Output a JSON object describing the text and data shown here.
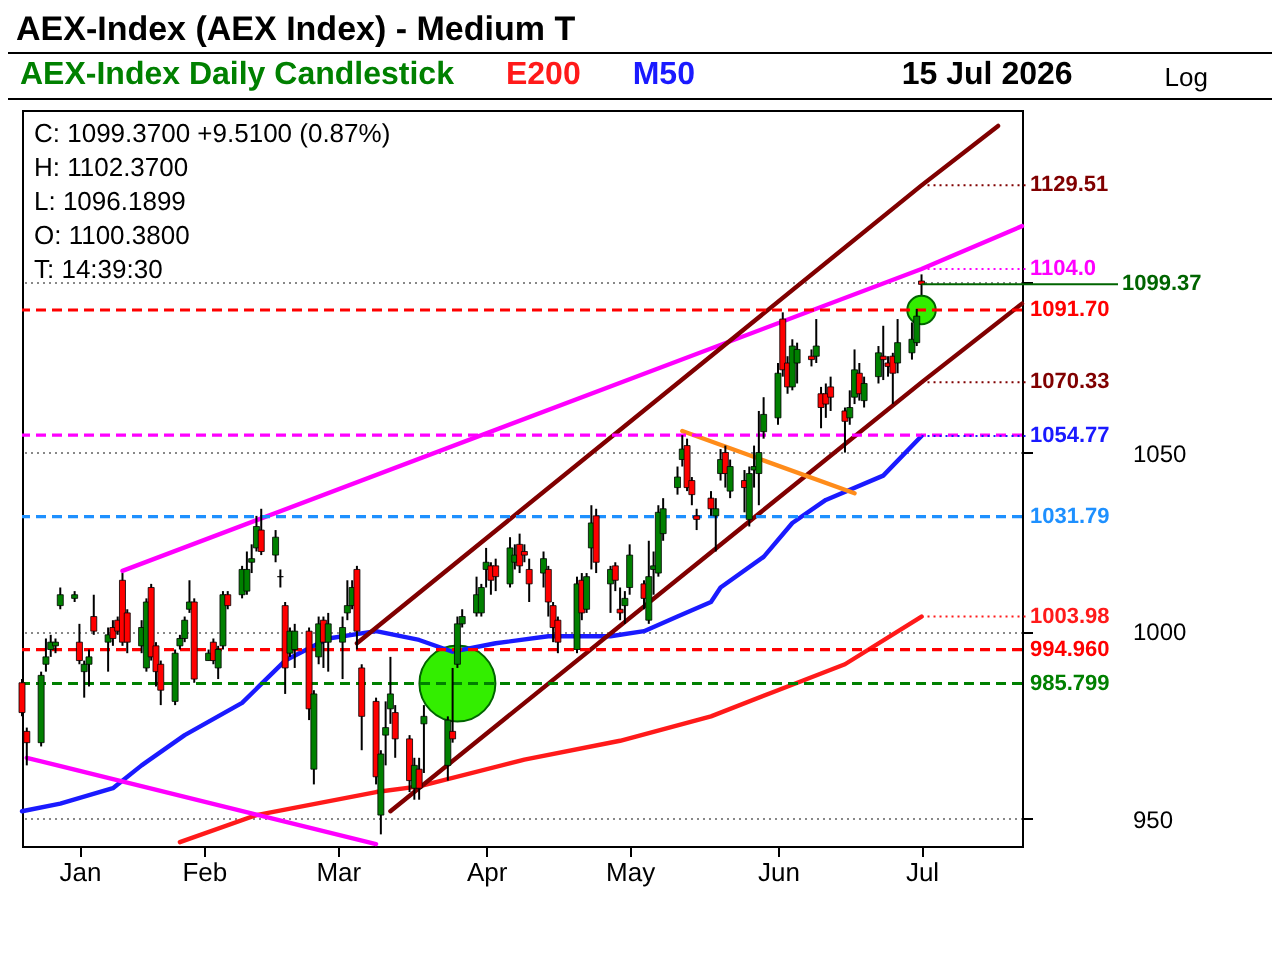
{
  "chart_data": {
    "type": "candlestick",
    "title": "AEX-Index (AEX Index) - Medium T",
    "subtitle": "AEX-Index Daily Candlestick",
    "annotations": [
      "15 Jul 2026",
      "Log",
      "C: 1099.3700  +9.5100 (0.87%)",
      "H: 1102.3700",
      "L: 1096.1899",
      "O: 1100.3800",
      "T: 14:39:30",
      {
        "text": "1099.37",
        "x": "2026-07-15",
        "y": 1099.37
      }
    ],
    "x": [
      "2026-01-08",
      "2026-01-09",
      "2026-01-12",
      "2026-01-13",
      "2026-01-14",
      "2026-01-15",
      "2026-01-16",
      "2026-01-19",
      "2026-01-20",
      "2026-01-21",
      "2026-01-22",
      "2026-01-23",
      "2026-01-26",
      "2026-01-27",
      "2026-01-28",
      "2026-01-29",
      "2026-01-30",
      "2026-02-02",
      "2026-02-03",
      "2026-02-04",
      "2026-02-05",
      "2026-02-06",
      "2026-02-09",
      "2026-02-10",
      "2026-02-11",
      "2026-02-12",
      "2026-02-13",
      "2026-02-16",
      "2026-02-17",
      "2026-02-18",
      "2026-02-19",
      "2026-02-20",
      "2026-02-23",
      "2026-02-24",
      "2026-02-25",
      "2026-02-26",
      "2026-02-27",
      "2026-03-02",
      "2026-03-03",
      "2026-03-04",
      "2026-03-05",
      "2026-03-06",
      "2026-03-09",
      "2026-03-10",
      "2026-03-11",
      "2026-03-12",
      "2026-03-13",
      "2026-03-16",
      "2026-03-17",
      "2026-03-18",
      "2026-03-19",
      "2026-03-20",
      "2026-03-23",
      "2026-03-24",
      "2026-03-25",
      "2026-03-26",
      "2026-03-27",
      "2026-03-30",
      "2026-03-31",
      "2026-04-01",
      "2026-04-02",
      "2026-04-07",
      "2026-04-08",
      "2026-04-09",
      "2026-04-10",
      "2026-04-13",
      "2026-04-14",
      "2026-04-15",
      "2026-04-16",
      "2026-04-17",
      "2026-04-20",
      "2026-04-21",
      "2026-04-22",
      "2026-04-23",
      "2026-04-24",
      "2026-04-27",
      "2026-04-28",
      "2026-04-29",
      "2026-04-30",
      "2026-05-04",
      "2026-05-05",
      "2026-05-06",
      "2026-05-07",
      "2026-05-08",
      "2026-05-11",
      "2026-05-12",
      "2026-05-13",
      "2026-05-14",
      "2026-05-15",
      "2026-05-18",
      "2026-05-19",
      "2026-05-20",
      "2026-05-21",
      "2026-05-22",
      "2026-05-25",
      "2026-05-26",
      "2026-05-27",
      "2026-05-28",
      "2026-05-29",
      "2026-06-01",
      "2026-06-02",
      "2026-06-03",
      "2026-06-04",
      "2026-06-05",
      "2026-06-08",
      "2026-06-09",
      "2026-06-10",
      "2026-06-11",
      "2026-06-12",
      "2026-06-15",
      "2026-06-16",
      "2026-06-17",
      "2026-06-18",
      "2026-06-19",
      "2026-06-22",
      "2026-06-23",
      "2026-06-24",
      "2026-06-25",
      "2026-06-26",
      "2026-06-29",
      "2026-06-30",
      "2026-07-01",
      "2026-07-02",
      "2026-07-03",
      "2026-07-06",
      "2026-07-07",
      "2026-07-08",
      "2026-07-09",
      "2026-07-10",
      "2026-07-13",
      "2026-07-14",
      "2026-07-15"
    ],
    "ohlc": [
      [
        986,
        987,
        977,
        978
      ],
      [
        973,
        974,
        964,
        970
      ],
      [
        970,
        989,
        969,
        988
      ],
      [
        991,
        998,
        989,
        993
      ],
      [
        995,
        999,
        993,
        997
      ],
      [
        996,
        998,
        994,
        997
      ],
      [
        1007,
        1012,
        1006,
        1010
      ],
      [
        1009,
        1011,
        1008,
        1010
      ],
      [
        997,
        1002,
        991,
        992
      ],
      [
        989,
        992,
        982,
        991
      ],
      [
        991,
        995,
        985,
        993
      ],
      [
        1004,
        1010,
        999,
        1000
      ],
      [
        997,
        1001,
        989,
        999
      ],
      [
        1001,
        1003,
        996,
        998
      ],
      [
        1003,
        1004,
        999,
        1000
      ],
      [
        1014,
        1016,
        996,
        997
      ],
      [
        1005,
        1006,
        994,
        997
      ],
      [
        996,
        1003,
        994,
        1001
      ],
      [
        990,
        1009,
        989,
        1008
      ],
      [
        1012,
        1013,
        992,
        993
      ],
      [
        996,
        997,
        985,
        989
      ],
      [
        991,
        992,
        980,
        984
      ],
      [
        981,
        995,
        980,
        994
      ],
      [
        996,
        999,
        995,
        998
      ],
      [
        998,
        1004,
        997,
        1003
      ],
      [
        1006,
        1014,
        1005,
        1008
      ],
      [
        1008,
        1009,
        986,
        987
      ],
      [
        992,
        995,
        992,
        994
      ],
      [
        997,
        998,
        991,
        992
      ],
      [
        990,
        996,
        987,
        995
      ],
      [
        996,
        1011,
        995,
        1010
      ],
      [
        1010,
        1011,
        1006,
        1007
      ],
      [
        1010,
        1018,
        1009,
        1017
      ],
      [
        1011,
        1022,
        1010,
        1017
      ],
      [
        1019,
        1024,
        1016,
        1020
      ],
      [
        1023,
        1032,
        1022,
        1029
      ],
      [
        1028,
        1034,
        1021,
        1022
      ],
      [
        1021,
        1028,
        1019,
        1026
      ],
      [
        1015,
        1017,
        1012,
        1015
      ],
      [
        1007,
        1008,
        983,
        990
      ],
      [
        994,
        1001,
        993,
        1000
      ],
      [
        995,
        1002,
        990,
        1000
      ],
      [
        1000,
        1001,
        976,
        979
      ],
      [
        963,
        984,
        959,
        983
      ],
      [
        993,
        1004,
        991,
        1002
      ],
      [
        1003,
        1004,
        990,
        997
      ],
      [
        997,
        1005,
        989,
        1002
      ],
      [
        997,
        1004,
        987,
        1001
      ],
      [
        1005,
        1014,
        1003,
        1007
      ],
      [
        1007,
        1014,
        1006,
        1012
      ],
      [
        1017,
        1018,
        995,
        1000
      ],
      [
        990,
        991,
        968,
        977
      ],
      [
        981,
        982,
        959,
        961
      ],
      [
        951,
        968,
        946,
        967
      ],
      [
        972,
        981,
        964,
        974
      ],
      [
        979,
        993,
        975,
        983
      ],
      [
        978,
        980,
        966,
        971
      ],
      [
        971,
        972,
        957,
        960
      ],
      [
        958,
        966,
        955,
        964
      ],
      [
        963,
        966,
        955,
        958
      ],
      [
        975,
        980,
        962,
        977
      ],
      [
        964,
        977,
        960,
        976
      ],
      [
        973,
        990,
        970,
        971
      ],
      [
        991,
        1004,
        990,
        1002
      ],
      [
        1002,
        1006,
        1001,
        1004
      ],
      [
        1005,
        1015,
        1004,
        1010
      ],
      [
        1005,
        1013,
        1004,
        1012
      ],
      [
        1017,
        1023,
        1012,
        1019
      ],
      [
        1018,
        1019,
        1010,
        1014
      ],
      [
        1018,
        1020,
        1011,
        1015
      ],
      [
        1013,
        1026,
        1012,
        1023
      ],
      [
        1019,
        1024,
        1017,
        1021
      ],
      [
        1024,
        1027,
        1016,
        1018
      ],
      [
        1022,
        1024,
        1019,
        1021
      ],
      [
        1017,
        1020,
        1008,
        1013
      ],
      [
        1016,
        1022,
        1012,
        1020
      ],
      [
        1017,
        1018,
        1004,
        1008
      ],
      [
        1007,
        1008,
        997,
        1001
      ],
      [
        1003,
        1004,
        994,
        997
      ],
      [
        995,
        1015,
        994,
        1013
      ],
      [
        1014,
        1016,
        1003,
        1005
      ],
      [
        1006,
        1016,
        1005,
        1015
      ],
      [
        1023,
        1035,
        1017,
        1030
      ],
      [
        1032,
        1034,
        1016,
        1019
      ],
      [
        1013,
        1018,
        1005,
        1017
      ],
      [
        1018,
        1019,
        1011,
        1014
      ],
      [
        1006,
        1012,
        1003,
        1005
      ],
      [
        1007,
        1011,
        1002,
        1009
      ],
      [
        1012,
        1024,
        1010,
        1021
      ],
      [
        1013,
        1014,
        1006,
        1009
      ],
      [
        1003,
        1025,
        1002,
        1015
      ],
      [
        1017,
        1022,
        1010,
        1018
      ],
      [
        1016,
        1035,
        1015,
        1033
      ],
      [
        1027,
        1037,
        1025,
        1034
      ],
      [
        1040,
        1046,
        1038,
        1043
      ],
      [
        1048,
        1055,
        1046,
        1051
      ],
      [
        1052,
        1054,
        1039,
        1040
      ],
      [
        1042,
        1043,
        1035,
        1038
      ],
      [
        1032,
        1034,
        1028,
        1031
      ],
      [
        1037,
        1039,
        1032,
        1034
      ],
      [
        1032,
        1037,
        1022,
        1034
      ],
      [
        1044,
        1051,
        1042,
        1048
      ],
      [
        1050,
        1052,
        1040,
        1044
      ],
      [
        1039,
        1048,
        1037,
        1046
      ],
      [
        1042,
        1045,
        1033,
        1040
      ],
      [
        1031,
        1046,
        1029,
        1044
      ],
      [
        1045,
        1052,
        1040,
        1046
      ],
      [
        1044,
        1062,
        1035,
        1050
      ],
      [
        1056,
        1066,
        1054,
        1061
      ],
      [
        1060,
        1076,
        1058,
        1073
      ],
      [
        1089,
        1091,
        1072,
        1074
      ],
      [
        1076,
        1078,
        1067,
        1069
      ],
      [
        1069,
        1083,
        1068,
        1081
      ],
      [
        1076,
        1082,
        1070,
        1080
      ],
      [
        1078,
        1080,
        1075,
        1077
      ],
      [
        1078,
        1089,
        1076,
        1081
      ],
      [
        1067,
        1069,
        1057,
        1063
      ],
      [
        1067,
        1070,
        1060,
        1064
      ],
      [
        1069,
        1072,
        1062,
        1066
      ],
      [
        1062,
        1063,
        1050,
        1059
      ],
      [
        1060,
        1068,
        1058,
        1063
      ],
      [
        1066,
        1080,
        1064,
        1074
      ],
      [
        1073,
        1076,
        1065,
        1067
      ],
      [
        1065,
        1072,
        1063,
        1070
      ],
      [
        1072,
        1081,
        1070,
        1079
      ],
      [
        1078,
        1087,
        1071,
        1077
      ],
      [
        1076,
        1078,
        1072,
        1075
      ],
      [
        1078,
        1079,
        1064,
        1073
      ],
      [
        1076,
        1089,
        1073,
        1082
      ],
      [
        1079,
        1088,
        1077,
        1083
      ],
      [
        1082,
        1092,
        1081,
        1089.86
      ],
      [
        1100.38,
        1102.37,
        1096.19,
        1099.37
      ]
    ],
    "series": [
      {
        "name": "E200",
        "type": "line",
        "color": "#ff1a1a",
        "x": [
          "2026-02-10",
          "2026-02-26",
          "2026-03-23",
          "2026-04-01",
          "2026-04-23",
          "2026-05-13",
          "2026-06-01",
          "2026-06-15",
          "2026-06-29",
          "2026-07-15"
        ],
        "values": [
          944,
          951,
          957,
          958.5,
          965.5,
          970.5,
          977,
          984,
          991,
          1003.98
        ],
        "value_labels": [
          null,
          null,
          null,
          null,
          null,
          null,
          null,
          null,
          null,
          "1003.98"
        ]
      },
      {
        "name": "M50",
        "type": "line",
        "color": "#1a1aff",
        "x": [
          "2026-01-08",
          "2026-01-16",
          "2026-01-27",
          "2026-02-02",
          "2026-02-11",
          "2026-02-23",
          "2026-03-04",
          "2026-03-13",
          "2026-03-23",
          "2026-04-01",
          "2026-04-08",
          "2026-04-17",
          "2026-04-28",
          "2026-05-11",
          "2026-05-18",
          "2026-05-25",
          "2026-06-01",
          "2026-06-03",
          "2026-06-12",
          "2026-06-18",
          "2026-06-25",
          "2026-07-07",
          "2026-07-15"
        ],
        "values": [
          952,
          954,
          958,
          964,
          972,
          980.6,
          992,
          998,
          1000,
          997.6,
          994.4,
          996.7,
          998.6,
          998.6,
          1000,
          1004,
          1008,
          1012,
          1020.5,
          1030,
          1036.5,
          1043.4,
          1054.77
        ],
        "value_labels": [
          null,
          null,
          null,
          null,
          null,
          null,
          null,
          null,
          null,
          null,
          null,
          null,
          null,
          null,
          null,
          null,
          null,
          null,
          null,
          null,
          null,
          null,
          "1054.77"
        ]
      },
      {
        "type": "line",
        "color": "#ff00ff",
        "x": [
          "2026-01-29",
          "2026-07-15",
          "2026-08-05"
        ],
        "values": [
          1016.6,
          1104.0,
          1117
        ],
        "value_labels": [
          null,
          "1104.0",
          null
        ]
      },
      {
        "type": "line",
        "color": "#ff00ff",
        "x": [
          "2026-01-09",
          "2026-03-23"
        ],
        "values": [
          966,
          943.5
        ]
      },
      {
        "type": "line",
        "color": "#800000",
        "x": [
          "2026-03-19",
          "2026-07-15",
          "2026-07-31"
        ],
        "values": [
          996.7,
          1129.51,
          1148
        ],
        "value_labels": [
          null,
          "1129.51",
          null
        ]
      },
      {
        "type": "line",
        "color": "#800000",
        "x": [
          "2026-03-26",
          "2026-07-15",
          "2026-08-05"
        ],
        "values": [
          952,
          1070.33,
          1093.6
        ],
        "value_labels": [
          null,
          "1070.33",
          null
        ]
      },
      {
        "type": "line",
        "color": "#ff8c1a",
        "x": [
          "2026-05-26",
          "2026-07-01"
        ],
        "values": [
          1056.2,
          1038.4
        ]
      },
      {
        "type": "bubble",
        "color": "#33ee00",
        "x": [
          "2026-04-09",
          "2026-07-15"
        ],
        "values": [
          985.8,
          1091.7
        ],
        "sizes": [
          1,
          0.14
        ]
      }
    ],
    "ref_lines": [
      {
        "axis": "y",
        "value": 1091.7,
        "label": "1091.70",
        "color": "#ff0000",
        "line_style": "dashed"
      },
      {
        "axis": "y",
        "value": 1055,
        "label": null,
        "color": "#ff00ff",
        "line_style": "dashed"
      },
      {
        "axis": "y",
        "value": 1031.79,
        "label": "1031.79",
        "color": "#1e90ff",
        "line_style": "dashed"
      },
      {
        "axis": "y",
        "value": 994.96,
        "label": "994.960",
        "color": "#ff0000",
        "line_style": "dashed"
      },
      {
        "axis": "y",
        "value": 985.799,
        "label": "985.799",
        "color": "#008000",
        "line_style": "dashed"
      }
    ],
    "xlim": [
      "2026-01-08",
      "2026-08-05"
    ],
    "xticks": [
      {
        "value": "2026-01-20",
        "label": "Jan"
      },
      {
        "value": "2026-02-15",
        "label": "Feb"
      },
      {
        "value": "2026-03-15",
        "label": "Mar"
      },
      {
        "value": "2026-04-15",
        "label": "Apr"
      },
      {
        "value": "2026-05-15",
        "label": "May"
      },
      {
        "value": "2026-06-15",
        "label": "Jun"
      },
      {
        "value": "2026-07-15",
        "label": "Jul"
      }
    ],
    "ylim": [
      943,
      1153
    ],
    "yticks": [
      950,
      1000,
      1050,
      {
        "value": 1100,
        "label": null
      }
    ],
    "log": true,
    "grid": "y",
    "legend": "top"
  }
}
